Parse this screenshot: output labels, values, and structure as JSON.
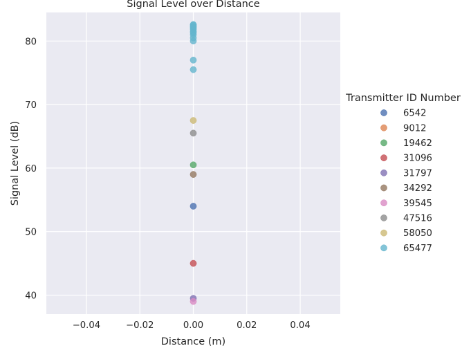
{
  "chart_data": {
    "type": "scatter",
    "title": "Signal Level over Distance",
    "xlabel": "Distance (m)",
    "ylabel": "Signal Level (dB)",
    "xlim": [
      -0.055,
      0.055
    ],
    "ylim": [
      37,
      84.5
    ],
    "x_ticks": [
      -0.04,
      -0.02,
      0.0,
      0.02,
      0.04
    ],
    "x_tick_labels": [
      "−0.04",
      "−0.02",
      "0.00",
      "0.02",
      "0.04"
    ],
    "y_ticks": [
      40,
      50,
      60,
      70,
      80
    ],
    "y_tick_labels": [
      "40",
      "50",
      "60",
      "70",
      "80"
    ],
    "grid": true,
    "legend": {
      "title": "Transmitter ID Number",
      "placement": "right"
    },
    "series": [
      {
        "name": "6542",
        "color": "#4c72b0",
        "x": [
          0
        ],
        "y": [
          54.0
        ]
      },
      {
        "name": "9012",
        "color": "#dd8452",
        "x": [],
        "y": []
      },
      {
        "name": "19462",
        "color": "#55a868",
        "x": [
          0
        ],
        "y": [
          60.5
        ]
      },
      {
        "name": "31096",
        "color": "#c44e52",
        "x": [
          0
        ],
        "y": [
          45.0
        ]
      },
      {
        "name": "31797",
        "color": "#8172b3",
        "x": [
          0
        ],
        "y": [
          39.5
        ]
      },
      {
        "name": "34292",
        "color": "#937860",
        "x": [
          0
        ],
        "y": [
          59.0
        ]
      },
      {
        "name": "39545",
        "color": "#da8bc3",
        "x": [
          0
        ],
        "y": [
          39.0
        ]
      },
      {
        "name": "47516",
        "color": "#8c8c8c",
        "x": [
          0
        ],
        "y": [
          65.5
        ]
      },
      {
        "name": "58050",
        "color": "#ccb974",
        "x": [
          0
        ],
        "y": [
          67.5
        ]
      },
      {
        "name": "65477",
        "color": "#64b5cd",
        "x": [
          0,
          0,
          0,
          0,
          0,
          0,
          0,
          0,
          0,
          0,
          0,
          0,
          0
        ],
        "y": [
          75.5,
          77.0,
          80.0,
          80.5,
          81.0,
          81.3,
          81.5,
          81.8,
          82.0,
          82.2,
          82.3,
          82.5,
          82.6
        ]
      }
    ]
  }
}
